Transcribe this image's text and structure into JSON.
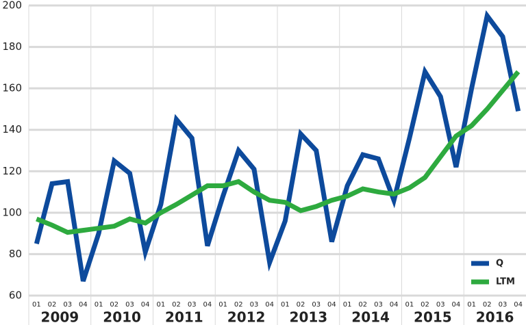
{
  "chart_data": {
    "type": "line",
    "categories": [
      "01",
      "02",
      "03",
      "04",
      "01",
      "02",
      "03",
      "04",
      "01",
      "02",
      "03",
      "04",
      "01",
      "02",
      "03",
      "04",
      "01",
      "02",
      "03",
      "04",
      "01",
      "02",
      "03",
      "04",
      "01",
      "02",
      "03",
      "04",
      "01",
      "02",
      "03",
      "04"
    ],
    "groups": [
      "2009",
      "2010",
      "2011",
      "2012",
      "2013",
      "2014",
      "2015",
      "2016"
    ],
    "series": [
      {
        "name": "Q",
        "color": "#0d4a9c",
        "values": [
          85,
          114,
          115,
          67,
          90,
          125,
          119,
          81,
          104,
          145,
          136,
          84,
          108,
          130,
          121,
          76,
          96,
          138,
          130,
          86,
          113,
          128,
          126,
          106,
          136,
          168,
          156,
          122,
          160,
          195,
          185,
          149
        ]
      },
      {
        "name": "LTM",
        "color": "#2eaa3f",
        "values": [
          97,
          94,
          90.5,
          91.5,
          92.5,
          93.5,
          97,
          95,
          100,
          104,
          108.5,
          113,
          113,
          115,
          110,
          106,
          105,
          101,
          103,
          106,
          108,
          111.5,
          110,
          109,
          112,
          117,
          127,
          137,
          142,
          150,
          159,
          168
        ]
      }
    ],
    "ylim": [
      60,
      200
    ],
    "yticks": [
      60,
      80,
      100,
      120,
      140,
      160,
      180,
      200
    ],
    "grid": true,
    "legend": "bottom-right"
  }
}
